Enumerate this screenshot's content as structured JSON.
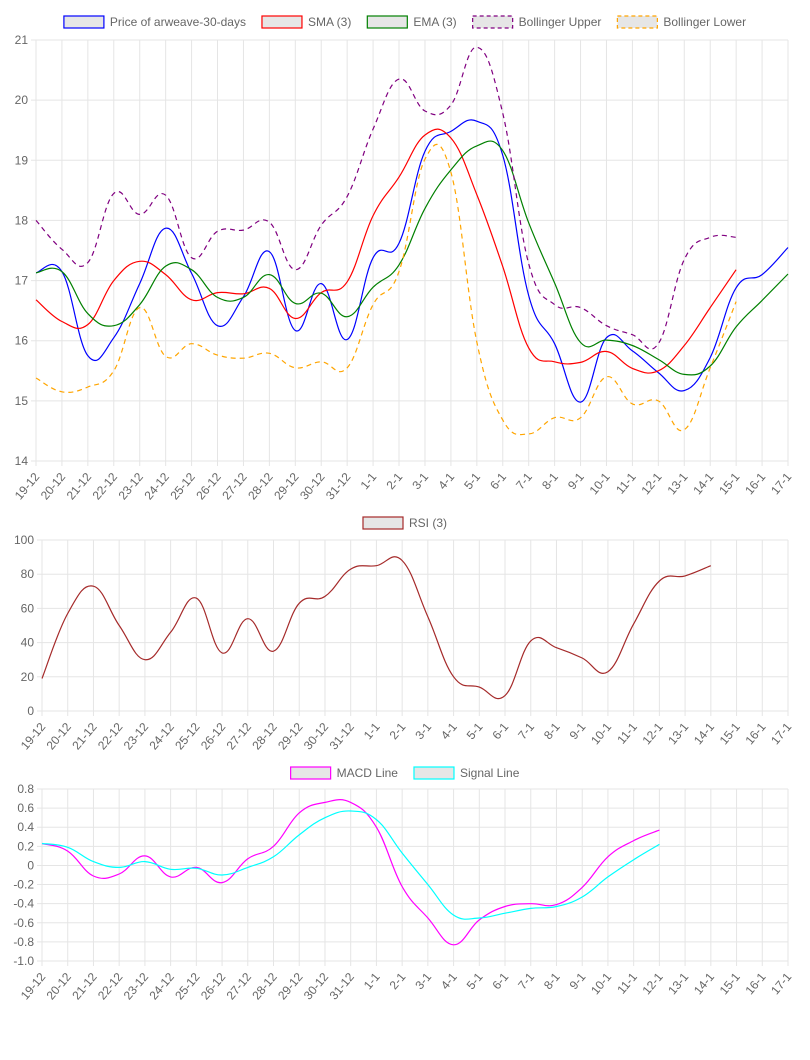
{
  "chart_data": [
    {
      "type": "line",
      "categories": [
        "19-12",
        "20-12",
        "21-12",
        "22-12",
        "23-12",
        "24-12",
        "25-12",
        "26-12",
        "27-12",
        "28-12",
        "29-12",
        "30-12",
        "31-12",
        "1-1",
        "2-1",
        "3-1",
        "4-1",
        "5-1",
        "6-1",
        "7-1",
        "8-1",
        "9-1",
        "10-1",
        "11-1",
        "12-1",
        "13-1",
        "14-1",
        "15-1",
        "16-1",
        "17-1"
      ],
      "ylim": [
        14,
        21
      ],
      "yticks": [
        14,
        15,
        16,
        17,
        18,
        19,
        20,
        21
      ],
      "grid": true,
      "legend_position": "top",
      "series": [
        {
          "name": "Price of arweave-30-days",
          "color": "#0000ff",
          "dashed": false,
          "values": [
            17.13,
            17.15,
            15.75,
            16.05,
            16.95,
            17.87,
            17.12,
            16.25,
            16.73,
            17.48,
            16.17,
            16.95,
            16.02,
            17.38,
            17.62,
            19.15,
            19.48,
            19.65,
            19.08,
            16.75,
            15.95,
            14.98,
            16.05,
            15.83,
            15.47,
            15.17,
            15.72,
            16.88,
            17.1,
            17.55
          ]
        },
        {
          "name": "SMA (3)",
          "color": "#ff0000",
          "dashed": false,
          "values": [
            16.68,
            16.32,
            16.27,
            17.0,
            17.32,
            17.1,
            16.68,
            16.8,
            16.78,
            16.87,
            16.37,
            16.8,
            16.98,
            18.08,
            18.72,
            19.42,
            19.37,
            18.43,
            17.23,
            15.88,
            15.65,
            15.64,
            15.82,
            15.54,
            15.5,
            15.92,
            16.55,
            17.18,
            null,
            null
          ]
        },
        {
          "name": "EMA (3)",
          "color": "#008000",
          "dashed": false,
          "values": [
            17.13,
            17.15,
            16.45,
            16.25,
            16.6,
            17.24,
            17.18,
            16.72,
            16.72,
            17.1,
            16.62,
            16.79,
            16.4,
            16.89,
            17.26,
            18.2,
            18.84,
            19.24,
            19.16,
            17.96,
            16.96,
            15.97,
            16.01,
            15.92,
            15.69,
            15.44,
            15.58,
            16.23,
            16.67,
            17.11
          ]
        },
        {
          "name": "Bollinger Upper",
          "color": "#800080",
          "dashed": true,
          "values": [
            18.0,
            17.52,
            17.3,
            18.45,
            18.1,
            18.42,
            17.38,
            17.82,
            17.84,
            17.97,
            17.18,
            17.92,
            18.4,
            19.52,
            20.35,
            19.82,
            19.92,
            20.88,
            19.78,
            17.28,
            16.6,
            16.55,
            16.25,
            16.1,
            15.95,
            17.35,
            17.72,
            17.72,
            null,
            null
          ]
        },
        {
          "name": "Bollinger Lower",
          "color": "#ffa500",
          "dashed": true,
          "values": [
            15.38,
            15.15,
            15.23,
            15.5,
            16.55,
            15.74,
            15.95,
            15.76,
            15.71,
            15.79,
            15.55,
            15.65,
            15.55,
            16.6,
            17.15,
            19.02,
            18.8,
            15.98,
            14.68,
            14.45,
            14.72,
            14.72,
            15.4,
            14.95,
            15.0,
            14.52,
            15.55,
            16.65,
            null,
            null
          ]
        }
      ]
    },
    {
      "type": "line",
      "categories": [
        "19-12",
        "20-12",
        "21-12",
        "22-12",
        "23-12",
        "24-12",
        "25-12",
        "26-12",
        "27-12",
        "28-12",
        "29-12",
        "30-12",
        "31-12",
        "1-1",
        "2-1",
        "3-1",
        "4-1",
        "5-1",
        "6-1",
        "7-1",
        "8-1",
        "9-1",
        "10-1",
        "11-1",
        "12-1",
        "13-1",
        "14-1",
        "15-1",
        "16-1",
        "17-1"
      ],
      "ylim": [
        0,
        100
      ],
      "yticks": [
        0,
        20,
        40,
        60,
        80,
        100
      ],
      "grid": true,
      "legend_position": "top",
      "series": [
        {
          "name": "RSI (3)",
          "color": "#a52a2a",
          "dashed": false,
          "values": [
            19,
            57,
            73,
            50,
            30,
            46,
            66,
            34,
            54,
            35,
            63,
            67,
            83,
            85,
            88,
            55,
            20,
            14,
            9,
            41,
            37,
            31,
            23,
            51,
            76,
            79,
            85,
            null,
            null,
            null
          ]
        }
      ]
    },
    {
      "type": "line",
      "categories": [
        "19-12",
        "20-12",
        "21-12",
        "22-12",
        "23-12",
        "24-12",
        "25-12",
        "26-12",
        "27-12",
        "28-12",
        "29-12",
        "30-12",
        "31-12",
        "1-1",
        "2-1",
        "3-1",
        "4-1",
        "5-1",
        "6-1",
        "7-1",
        "8-1",
        "9-1",
        "10-1",
        "11-1",
        "12-1",
        "13-1",
        "14-1",
        "15-1",
        "16-1",
        "17-1"
      ],
      "ylim": [
        -1.0,
        0.8
      ],
      "yticks": [
        "0.8",
        "0.6",
        "0.4",
        "0.2",
        "0",
        "-0.2",
        "-0.4",
        "-0.6",
        "-0.8",
        "-1.0"
      ],
      "grid": true,
      "legend_position": "top",
      "series": [
        {
          "name": "MACD Line",
          "color": "#ff00ff",
          "dashed": false,
          "values": [
            0.23,
            0.15,
            -0.11,
            -0.09,
            0.1,
            -0.12,
            -0.02,
            -0.18,
            0.07,
            0.2,
            0.55,
            0.66,
            0.66,
            0.4,
            -0.22,
            -0.55,
            -0.83,
            -0.57,
            -0.43,
            -0.4,
            -0.41,
            -0.23,
            0.09,
            0.26,
            0.37,
            null,
            null,
            null,
            null,
            null
          ]
        },
        {
          "name": "Signal Line",
          "color": "#00ffff",
          "dashed": false,
          "values": [
            0.23,
            0.19,
            0.04,
            -0.02,
            0.04,
            -0.04,
            -0.03,
            -0.1,
            -0.02,
            0.09,
            0.32,
            0.5,
            0.57,
            0.48,
            0.13,
            -0.2,
            -0.52,
            -0.55,
            -0.5,
            -0.45,
            -0.43,
            -0.33,
            -0.12,
            0.06,
            0.22,
            null,
            null,
            null,
            null,
            null
          ]
        }
      ]
    }
  ]
}
